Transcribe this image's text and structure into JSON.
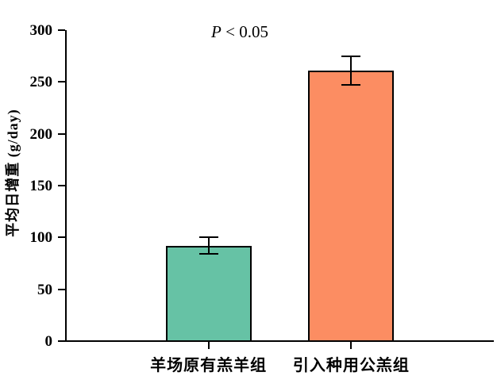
{
  "annotation": {
    "symbol": "P",
    "rest": " < 0.05"
  },
  "chart_data": {
    "type": "bar",
    "title": "",
    "annotation": "P < 0.05",
    "xlabel": "",
    "ylabel": "平均日增重 (g/day)",
    "categories": [
      "羊场原有羔羊组",
      "引入种用公羔组"
    ],
    "values": [
      92,
      261
    ],
    "errors": [
      8,
      14
    ],
    "bar_colors": [
      "#66C2A5",
      "#FC8D62"
    ],
    "ylim": [
      0,
      300
    ],
    "yticks": [
      0,
      50,
      100,
      150,
      200,
      250,
      300
    ],
    "grid": false,
    "legend": "none",
    "error_bars": true
  }
}
